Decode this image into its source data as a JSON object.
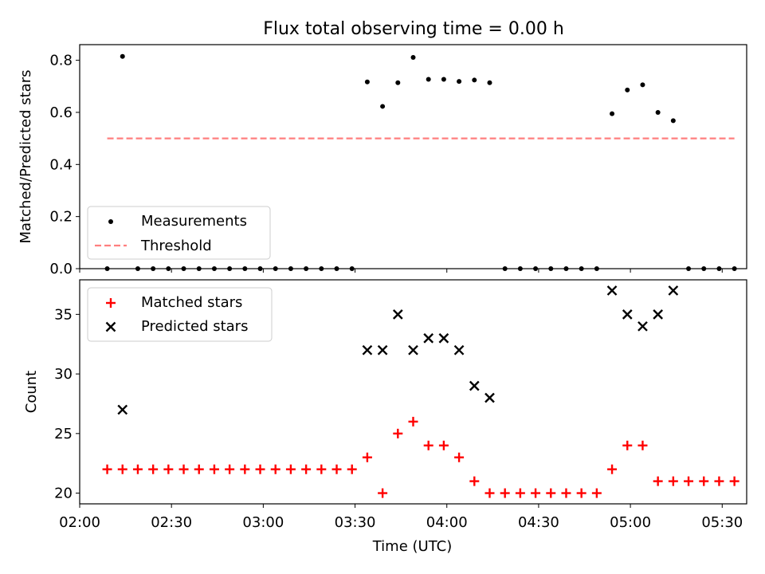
{
  "figure": {
    "title": "Flux total observing time = 0.00 h"
  },
  "chart_data": [
    {
      "type": "scatter",
      "ylabel": "Matched/Predicted stars",
      "ylim": [
        0,
        0.86
      ],
      "yticks": [
        "0.0",
        "0.2",
        "0.4",
        "0.6",
        "0.8"
      ],
      "ytick_values": [
        0,
        0.2,
        0.4,
        0.6,
        0.8
      ],
      "x_range": [
        "02:00",
        "05:38"
      ],
      "series": [
        {
          "name": "Measurements",
          "marker": "dot",
          "color": "#000000",
          "points": [
            [
              "02:09",
              0
            ],
            [
              "02:14",
              0.815
            ],
            [
              "02:19",
              0
            ],
            [
              "02:24",
              0
            ],
            [
              "02:29",
              0
            ],
            [
              "02:34",
              0
            ],
            [
              "02:39",
              0
            ],
            [
              "02:44",
              0
            ],
            [
              "02:49",
              0
            ],
            [
              "02:54",
              0
            ],
            [
              "02:59",
              0
            ],
            [
              "03:04",
              0
            ],
            [
              "03:09",
              0
            ],
            [
              "03:14",
              0
            ],
            [
              "03:19",
              0
            ],
            [
              "03:24",
              0
            ],
            [
              "03:29",
              0
            ],
            [
              "03:34",
              0.717
            ],
            [
              "03:39",
              0.623
            ],
            [
              "03:44",
              0.714
            ],
            [
              "03:49",
              0.811
            ],
            [
              "03:54",
              0.727
            ],
            [
              "03:59",
              0.727
            ],
            [
              "04:04",
              0.719
            ],
            [
              "04:09",
              0.724
            ],
            [
              "04:14",
              0.714
            ],
            [
              "04:19",
              0
            ],
            [
              "04:24",
              0
            ],
            [
              "04:29",
              0
            ],
            [
              "04:34",
              0
            ],
            [
              "04:39",
              0
            ],
            [
              "04:44",
              0
            ],
            [
              "04:49",
              0
            ],
            [
              "04:54",
              0.595
            ],
            [
              "04:59",
              0.686
            ],
            [
              "05:04",
              0.706
            ],
            [
              "05:09",
              0.6
            ],
            [
              "05:14",
              0.568
            ],
            [
              "05:19",
              0
            ],
            [
              "05:24",
              0
            ],
            [
              "05:29",
              0
            ],
            [
              "05:34",
              0
            ]
          ]
        },
        {
          "name": "Threshold",
          "style": "dashed",
          "color": "#ff7f7f",
          "points": [
            [
              "02:09",
              0.5
            ],
            [
              "05:34",
              0.5
            ]
          ]
        }
      ],
      "legend": "lower-left"
    },
    {
      "type": "scatter",
      "xlabel": "Time (UTC)",
      "ylabel": "Count",
      "ylim": [
        19.1,
        37.9
      ],
      "yticks": [
        "20",
        "25",
        "30",
        "35"
      ],
      "ytick_values": [
        20,
        25,
        30,
        35
      ],
      "xticks": [
        "02:00",
        "02:30",
        "03:00",
        "03:30",
        "04:00",
        "04:30",
        "05:00",
        "05:30"
      ],
      "x_range": [
        "02:00",
        "05:38"
      ],
      "series": [
        {
          "name": "Matched stars",
          "marker": "plus",
          "color": "#ff0000",
          "points": [
            [
              "02:09",
              22
            ],
            [
              "02:14",
              22
            ],
            [
              "02:19",
              22
            ],
            [
              "02:24",
              22
            ],
            [
              "02:29",
              22
            ],
            [
              "02:34",
              22
            ],
            [
              "02:39",
              22
            ],
            [
              "02:44",
              22
            ],
            [
              "02:49",
              22
            ],
            [
              "02:54",
              22
            ],
            [
              "02:59",
              22
            ],
            [
              "03:04",
              22
            ],
            [
              "03:09",
              22
            ],
            [
              "03:14",
              22
            ],
            [
              "03:19",
              22
            ],
            [
              "03:24",
              22
            ],
            [
              "03:29",
              22
            ],
            [
              "03:34",
              23
            ],
            [
              "03:39",
              20
            ],
            [
              "03:44",
              25
            ],
            [
              "03:49",
              26
            ],
            [
              "03:54",
              24
            ],
            [
              "03:59",
              24
            ],
            [
              "04:04",
              23
            ],
            [
              "04:09",
              21
            ],
            [
              "04:14",
              20
            ],
            [
              "04:19",
              20
            ],
            [
              "04:24",
              20
            ],
            [
              "04:29",
              20
            ],
            [
              "04:34",
              20
            ],
            [
              "04:39",
              20
            ],
            [
              "04:44",
              20
            ],
            [
              "04:49",
              20
            ],
            [
              "04:54",
              22
            ],
            [
              "04:59",
              24
            ],
            [
              "05:04",
              24
            ],
            [
              "05:09",
              21
            ],
            [
              "05:14",
              21
            ],
            [
              "05:19",
              21
            ],
            [
              "05:24",
              21
            ],
            [
              "05:29",
              21
            ],
            [
              "05:34",
              21
            ]
          ]
        },
        {
          "name": "Predicted stars",
          "marker": "x",
          "color": "#000000",
          "points": [
            [
              "02:14",
              27
            ],
            [
              "03:34",
              32
            ],
            [
              "03:39",
              32
            ],
            [
              "03:44",
              35
            ],
            [
              "03:49",
              32
            ],
            [
              "03:54",
              33
            ],
            [
              "03:59",
              33
            ],
            [
              "04:04",
              32
            ],
            [
              "04:09",
              29
            ],
            [
              "04:14",
              28
            ],
            [
              "04:54",
              37
            ],
            [
              "04:59",
              35
            ],
            [
              "05:04",
              34
            ],
            [
              "05:09",
              35
            ],
            [
              "05:14",
              37
            ]
          ]
        }
      ],
      "legend": "upper-left"
    }
  ]
}
